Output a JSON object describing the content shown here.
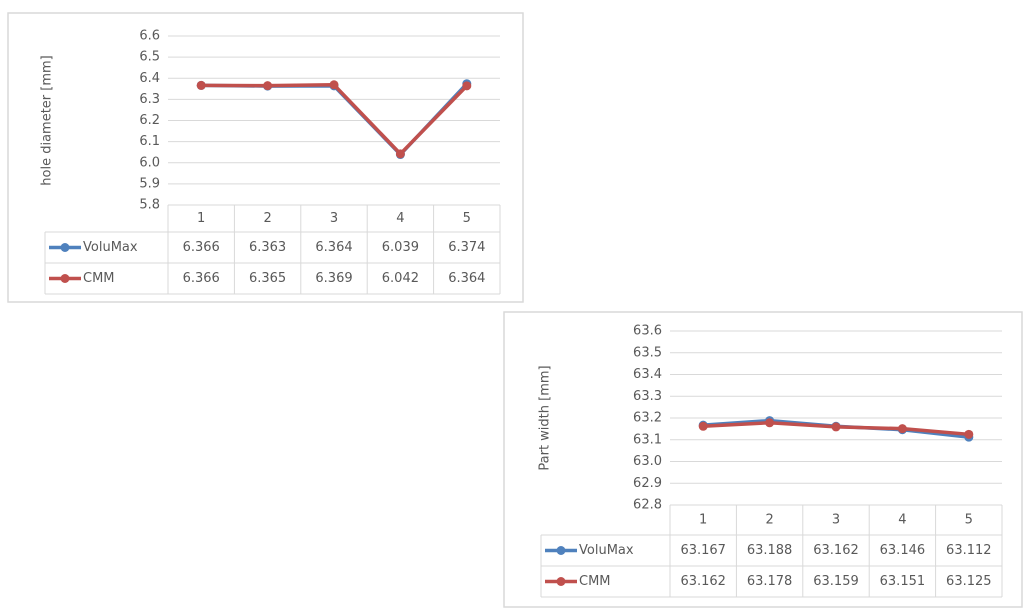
{
  "chart_data": [
    {
      "type": "line",
      "y_label": "hole diameter [mm]",
      "categories": [
        "1",
        "2",
        "3",
        "4",
        "5"
      ],
      "series": [
        {
          "name": "VoluMax",
          "color": "#4f81bd",
          "values": [
            6.366,
            6.363,
            6.364,
            6.039,
            6.374
          ]
        },
        {
          "name": "CMM",
          "color": "#c0504d",
          "values": [
            6.366,
            6.365,
            6.369,
            6.042,
            6.364
          ]
        }
      ],
      "ylim": [
        5.8,
        6.6
      ],
      "yticks": [
        5.8,
        5.9,
        {
          "value": 6,
          "label": "6.0"
        },
        6.1,
        6.2,
        6.3,
        6.4,
        6.5,
        6.6
      ],
      "grid": true
    },
    {
      "type": "line",
      "y_label": "Part width [mm]",
      "categories": [
        "1",
        "2",
        "3",
        "4",
        "5"
      ],
      "series": [
        {
          "name": "VoluMax",
          "color": "#4f81bd",
          "values": [
            63.167,
            63.188,
            63.162,
            63.146,
            63.112
          ]
        },
        {
          "name": "CMM",
          "color": "#c0504d",
          "values": [
            63.162,
            63.178,
            63.159,
            63.151,
            63.125
          ]
        }
      ],
      "ylim": [
        62.8,
        63.6
      ],
      "yticks": [
        62.8,
        62.9,
        {
          "value": 63,
          "label": "63.0"
        },
        63.1,
        63.2,
        63.3,
        63.4,
        63.5,
        63.6
      ],
      "grid": true
    }
  ]
}
